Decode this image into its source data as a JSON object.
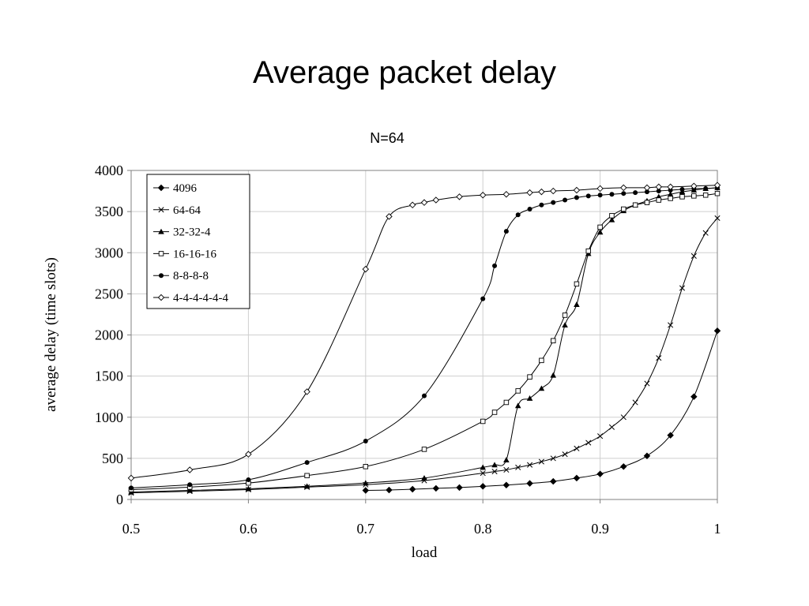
{
  "slide_title": "Average packet delay",
  "chart_data": {
    "type": "line",
    "subtitle": "N=64",
    "xlabel": "load",
    "ylabel": "average delay (time slots)",
    "xlim": [
      0.5,
      1.0
    ],
    "ylim": [
      0,
      4000
    ],
    "x_ticks": [
      "0.5",
      "0.6",
      "0.7",
      "0.8",
      "0.9",
      "1"
    ],
    "y_ticks": [
      "0",
      "500",
      "1000",
      "1500",
      "2000",
      "2500",
      "3000",
      "3500",
      "4000"
    ],
    "grid": true,
    "legend_position": "top-left",
    "series": [
      {
        "name": "4096",
        "marker": "diamond-filled",
        "x": [
          0.7,
          0.72,
          0.74,
          0.76,
          0.78,
          0.8,
          0.82,
          0.84,
          0.86,
          0.88,
          0.9,
          0.92,
          0.94,
          0.96,
          0.98,
          1.0
        ],
        "y": [
          110,
          115,
          125,
          135,
          145,
          160,
          175,
          195,
          220,
          260,
          310,
          400,
          530,
          780,
          1250,
          2050
        ]
      },
      {
        "name": "64-64",
        "marker": "x",
        "x": [
          0.5,
          0.55,
          0.6,
          0.65,
          0.7,
          0.75,
          0.8,
          0.81,
          0.82,
          0.83,
          0.84,
          0.85,
          0.86,
          0.87,
          0.88,
          0.89,
          0.9,
          0.91,
          0.92,
          0.93,
          0.94,
          0.95,
          0.96,
          0.97,
          0.98,
          0.99,
          1.0
        ],
        "y": [
          80,
          100,
          120,
          150,
          180,
          230,
          320,
          340,
          360,
          390,
          420,
          460,
          500,
          550,
          620,
          690,
          770,
          880,
          1000,
          1180,
          1410,
          1720,
          2120,
          2570,
          2960,
          3240,
          3420
        ]
      },
      {
        "name": "32-32-4",
        "marker": "triangle-filled",
        "x": [
          0.5,
          0.55,
          0.6,
          0.65,
          0.7,
          0.75,
          0.8,
          0.81,
          0.82,
          0.83,
          0.84,
          0.85,
          0.86,
          0.87,
          0.88,
          0.89,
          0.9,
          0.91,
          0.92,
          0.93,
          0.94,
          0.95,
          0.96,
          0.97,
          0.98,
          0.99,
          1.0
        ],
        "y": [
          90,
          110,
          130,
          160,
          200,
          260,
          390,
          420,
          480,
          1140,
          1230,
          1350,
          1510,
          2120,
          2370,
          2990,
          3250,
          3400,
          3510,
          3580,
          3630,
          3680,
          3710,
          3740,
          3760,
          3780,
          3790
        ]
      },
      {
        "name": "16-16-16",
        "marker": "square-open",
        "x": [
          0.5,
          0.55,
          0.6,
          0.65,
          0.7,
          0.75,
          0.8,
          0.81,
          0.82,
          0.83,
          0.84,
          0.85,
          0.86,
          0.87,
          0.88,
          0.89,
          0.9,
          0.91,
          0.92,
          0.93,
          0.94,
          0.95,
          0.96,
          0.97,
          0.98,
          0.99,
          1.0
        ],
        "y": [
          120,
          150,
          200,
          290,
          400,
          610,
          950,
          1060,
          1180,
          1320,
          1490,
          1690,
          1930,
          2240,
          2620,
          3020,
          3310,
          3450,
          3530,
          3580,
          3610,
          3640,
          3660,
          3680,
          3690,
          3700,
          3720
        ]
      },
      {
        "name": "8-8-8-8",
        "marker": "circle-filled",
        "x": [
          0.5,
          0.55,
          0.6,
          0.65,
          0.7,
          0.75,
          0.8,
          0.81,
          0.82,
          0.83,
          0.84,
          0.85,
          0.86,
          0.87,
          0.88,
          0.89,
          0.9,
          0.91,
          0.92,
          0.93,
          0.94,
          0.95,
          0.96,
          0.97,
          0.98,
          0.99,
          1.0
        ],
        "y": [
          140,
          180,
          240,
          450,
          710,
          1260,
          2440,
          2840,
          3260,
          3460,
          3530,
          3580,
          3610,
          3640,
          3670,
          3690,
          3700,
          3710,
          3720,
          3730,
          3740,
          3750,
          3760,
          3770,
          3780,
          3780,
          3790
        ]
      },
      {
        "name": "4-4-4-4-4-4",
        "marker": "diamond-open",
        "x": [
          0.5,
          0.55,
          0.6,
          0.65,
          0.7,
          0.72,
          0.74,
          0.75,
          0.76,
          0.78,
          0.8,
          0.82,
          0.84,
          0.85,
          0.86,
          0.88,
          0.9,
          0.92,
          0.94,
          0.95,
          0.96,
          0.98,
          1.0
        ],
        "y": [
          260,
          360,
          550,
          1310,
          2800,
          3440,
          3580,
          3610,
          3640,
          3680,
          3700,
          3710,
          3730,
          3740,
          3750,
          3760,
          3780,
          3790,
          3790,
          3800,
          3800,
          3810,
          3820
        ]
      }
    ]
  }
}
